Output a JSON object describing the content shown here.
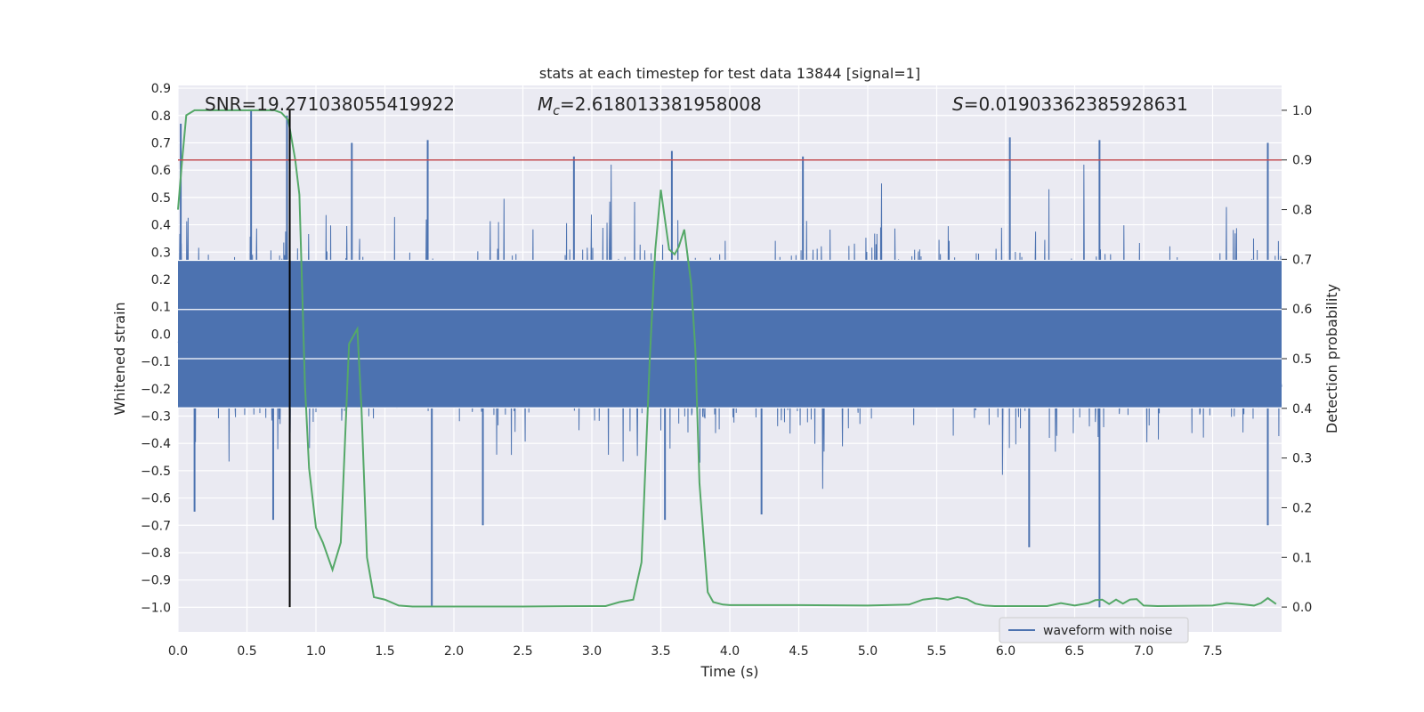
{
  "chart_data": {
    "type": "line",
    "title": "stats at each timestep for test data 13844 [signal=1]",
    "xlabel": "Time (s)",
    "ylabel": "Whitened strain",
    "y2label": "Detection probability",
    "xlim": [
      0.0,
      8.0
    ],
    "ylim": [
      -1.09,
      0.91
    ],
    "y2lim": [
      -0.05,
      1.05
    ],
    "xticks": [
      "0.0",
      "0.5",
      "1.0",
      "1.5",
      "2.0",
      "2.5",
      "3.0",
      "3.5",
      "4.0",
      "4.5",
      "5.0",
      "5.5",
      "6.0",
      "6.5",
      "7.0",
      "7.5"
    ],
    "yticks": [
      "0.9",
      "0.8",
      "0.7",
      "0.6",
      "0.5",
      "0.4",
      "0.3",
      "0.2",
      "0.1",
      "0.0",
      "−0.1",
      "−0.2",
      "−0.3",
      "−0.4",
      "−0.5",
      "−0.6",
      "−0.7",
      "−0.8",
      "−0.9",
      "−1.0"
    ],
    "y2ticks": [
      "1.0",
      "0.9",
      "0.8",
      "0.7",
      "0.6",
      "0.5",
      "0.4",
      "0.3",
      "0.2",
      "0.1",
      "0.0"
    ],
    "grid": true,
    "legend_position": "lower-right",
    "annotations": {
      "snr": "SNR=19.271038055419922",
      "mc_symbol": "M",
      "mc_sub": "c",
      "mc_value": "=2.618013381958008",
      "s_symbol": "S",
      "s_value": "=0.01903362385928631"
    },
    "threshold_line": {
      "y2": 0.9,
      "color": "#c44e52"
    },
    "marker_line": {
      "x": 0.81,
      "color": "#000000"
    },
    "waveform": {
      "name": "waveform with noise",
      "color": "#4c72b0",
      "typical_abs_amplitude": 0.3,
      "peaks": [
        {
          "x": 0.02,
          "y": 0.77
        },
        {
          "x": 0.53,
          "y": 0.82
        },
        {
          "x": 0.79,
          "y": 0.8
        },
        {
          "x": 1.26,
          "y": 0.7
        },
        {
          "x": 1.81,
          "y": 0.71
        },
        {
          "x": 2.87,
          "y": 0.65
        },
        {
          "x": 3.58,
          "y": 0.67
        },
        {
          "x": 4.53,
          "y": 0.65
        },
        {
          "x": 6.03,
          "y": 0.72
        },
        {
          "x": 6.68,
          "y": 0.71
        },
        {
          "x": 7.9,
          "y": 0.7
        }
      ],
      "troughs": [
        {
          "x": 0.12,
          "y": -0.65
        },
        {
          "x": 0.69,
          "y": -0.68
        },
        {
          "x": 1.84,
          "y": -1.0
        },
        {
          "x": 2.21,
          "y": -0.7
        },
        {
          "x": 3.53,
          "y": -0.68
        },
        {
          "x": 4.23,
          "y": -0.66
        },
        {
          "x": 6.17,
          "y": -0.78
        },
        {
          "x": 6.68,
          "y": -1.0
        },
        {
          "x": 7.9,
          "y": -0.7
        }
      ]
    },
    "series": [
      {
        "color": "#55a868",
        "x": [
          0.0,
          0.03,
          0.06,
          0.12,
          0.3,
          0.5,
          0.7,
          0.75,
          0.8,
          0.85,
          0.88,
          0.92,
          0.95,
          1.0,
          1.05,
          1.12,
          1.18,
          1.24,
          1.3,
          1.33,
          1.37,
          1.42,
          1.5,
          1.6,
          1.7,
          1.8,
          2.0,
          2.5,
          3.0,
          3.1,
          3.2,
          3.3,
          3.36,
          3.42,
          3.46,
          3.5,
          3.52,
          3.56,
          3.6,
          3.63,
          3.67,
          3.72,
          3.75,
          3.78,
          3.84,
          3.88,
          3.95,
          4.0,
          4.5,
          5.0,
          5.3,
          5.4,
          5.5,
          5.58,
          5.65,
          5.72,
          5.78,
          5.85,
          5.92,
          6.0,
          6.3,
          6.4,
          6.5,
          6.6,
          6.65,
          6.7,
          6.75,
          6.8,
          6.85,
          6.9,
          6.95,
          7.0,
          7.1,
          7.5,
          7.6,
          7.7,
          7.8,
          7.85,
          7.9,
          7.96
        ],
        "y": [
          0.8,
          0.9,
          0.99,
          1.0,
          1.0,
          1.0,
          1.0,
          0.995,
          0.98,
          0.9,
          0.83,
          0.45,
          0.28,
          0.16,
          0.13,
          0.075,
          0.13,
          0.53,
          0.56,
          0.4,
          0.1,
          0.02,
          0.015,
          0.003,
          0.001,
          0.001,
          0.001,
          0.001,
          0.002,
          0.002,
          0.01,
          0.015,
          0.09,
          0.5,
          0.72,
          0.84,
          0.8,
          0.72,
          0.71,
          0.725,
          0.76,
          0.65,
          0.52,
          0.25,
          0.03,
          0.01,
          0.005,
          0.004,
          0.004,
          0.003,
          0.005,
          0.015,
          0.018,
          0.015,
          0.02,
          0.016,
          0.007,
          0.003,
          0.002,
          0.002,
          0.002,
          0.008,
          0.003,
          0.008,
          0.014,
          0.015,
          0.006,
          0.015,
          0.007,
          0.015,
          0.016,
          0.003,
          0.002,
          0.003,
          0.008,
          0.006,
          0.003,
          0.008,
          0.018,
          0.006
        ]
      }
    ]
  }
}
